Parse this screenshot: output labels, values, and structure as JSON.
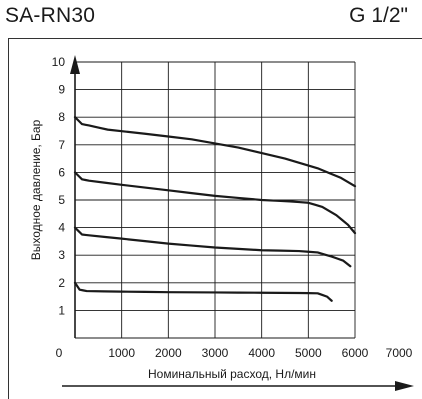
{
  "header": {
    "model": "SA-RN30",
    "thread_size": "G 1/2\""
  },
  "chart_data": {
    "type": "line",
    "xlabel": "Номинальный расход, Нл/мин",
    "ylabel": "Выходное давление, Бар",
    "xlim": [
      0,
      7000
    ],
    "ylim": [
      0,
      10
    ],
    "x_ticks": [
      "0",
      "1000",
      "2000",
      "3000",
      "4000",
      "5000",
      "6000",
      "7000"
    ],
    "y_ticks": [
      "1",
      "2",
      "3",
      "4",
      "5",
      "6",
      "7",
      "8",
      "9",
      "10"
    ],
    "grid": true,
    "series": [
      {
        "values": [
          [
            0,
            8.0
          ],
          [
            150,
            7.75
          ],
          [
            300,
            7.7
          ],
          [
            700,
            7.55
          ],
          [
            1500,
            7.4
          ],
          [
            2500,
            7.2
          ],
          [
            3500,
            6.9
          ],
          [
            4500,
            6.5
          ],
          [
            5200,
            6.15
          ],
          [
            5700,
            5.8
          ],
          [
            6000,
            5.5
          ]
        ]
      },
      {
        "values": [
          [
            0,
            6.0
          ],
          [
            150,
            5.75
          ],
          [
            300,
            5.7
          ],
          [
            1000,
            5.55
          ],
          [
            2000,
            5.35
          ],
          [
            3000,
            5.15
          ],
          [
            4000,
            5.0
          ],
          [
            4600,
            4.95
          ],
          [
            5000,
            4.9
          ],
          [
            5300,
            4.75
          ],
          [
            5600,
            4.45
          ],
          [
            5850,
            4.1
          ],
          [
            6000,
            3.8
          ]
        ]
      },
      {
        "values": [
          [
            0,
            4.0
          ],
          [
            150,
            3.75
          ],
          [
            300,
            3.72
          ],
          [
            1000,
            3.6
          ],
          [
            2000,
            3.42
          ],
          [
            3000,
            3.28
          ],
          [
            4000,
            3.18
          ],
          [
            4800,
            3.15
          ],
          [
            5200,
            3.1
          ],
          [
            5500,
            2.95
          ],
          [
            5750,
            2.8
          ],
          [
            5900,
            2.6
          ]
        ]
      },
      {
        "values": [
          [
            0,
            2.0
          ],
          [
            100,
            1.75
          ],
          [
            250,
            1.7
          ],
          [
            1000,
            1.68
          ],
          [
            2000,
            1.66
          ],
          [
            3000,
            1.65
          ],
          [
            4000,
            1.64
          ],
          [
            4800,
            1.63
          ],
          [
            5200,
            1.62
          ],
          [
            5400,
            1.5
          ],
          [
            5500,
            1.35
          ]
        ]
      }
    ]
  },
  "colors": {
    "line": "#1a1a1a",
    "grid": "#1a1a1a",
    "arrow": "#1a1a1a"
  }
}
